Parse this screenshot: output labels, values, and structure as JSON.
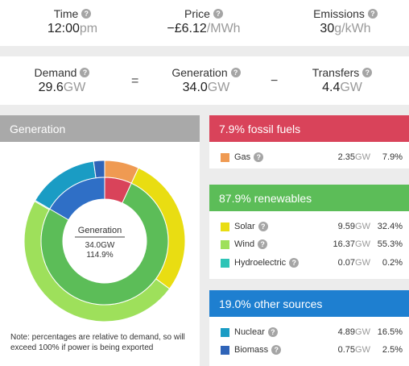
{
  "top": {
    "time": {
      "label": "Time",
      "value": "12:00",
      "unit": "pm"
    },
    "price": {
      "label": "Price",
      "value": "−£6.12",
      "unit": "/MWh"
    },
    "emissions": {
      "label": "Emissions",
      "value": "30",
      "unit": "g/kWh"
    }
  },
  "balance": {
    "demand": {
      "label": "Demand",
      "value": "29.6",
      "unit": "GW"
    },
    "equals": "=",
    "generation": {
      "label": "Generation",
      "value": "34.0",
      "unit": "GW"
    },
    "minus": "−",
    "transfers": {
      "label": "Transfers",
      "value": "4.4",
      "unit": "GW"
    }
  },
  "generation_panel": {
    "title": "Generation",
    "center_label": "Generation",
    "center_gw": "34.0GW",
    "center_pct": "114.9%",
    "note": "Note: percentages are relative to demand, so will exceed 100% if power is being exported"
  },
  "groups": [
    {
      "title": "7.9% fossil fuels",
      "color": "#d9435a",
      "rows": [
        {
          "name": "Gas",
          "color": "#ef9a52",
          "gw": "2.35",
          "unit": "GW",
          "pct": "7.9%"
        }
      ]
    },
    {
      "title": "87.9% renewables",
      "color": "#5cbd58",
      "rows": [
        {
          "name": "Solar",
          "color": "#e9dd12",
          "gw": "9.59",
          "unit": "GW",
          "pct": "32.4%"
        },
        {
          "name": "Wind",
          "color": "#9ee05b",
          "gw": "16.37",
          "unit": "GW",
          "pct": "55.3%"
        },
        {
          "name": "Hydroelectric",
          "color": "#2ec4b6",
          "gw": "0.07",
          "unit": "GW",
          "pct": "0.2%"
        }
      ]
    },
    {
      "title": "19.0% other sources",
      "color": "#1e7fd0",
      "rows": [
        {
          "name": "Nuclear",
          "color": "#1a9cc4",
          "gw": "4.89",
          "unit": "GW",
          "pct": "16.5%"
        },
        {
          "name": "Biomass",
          "color": "#2f64b8",
          "gw": "0.75",
          "unit": "GW",
          "pct": "2.5%"
        }
      ]
    }
  ],
  "chart_data": {
    "type": "pie",
    "title": "Generation",
    "outer_ring": [
      {
        "name": "Gas",
        "value": 2.35,
        "color": "#ef9a52"
      },
      {
        "name": "Solar",
        "value": 9.59,
        "color": "#e9dd12"
      },
      {
        "name": "Wind",
        "value": 16.37,
        "color": "#9ee05b"
      },
      {
        "name": "Hydroelectric",
        "value": 0.07,
        "color": "#2ec4b6"
      },
      {
        "name": "Nuclear",
        "value": 4.89,
        "color": "#1a9cc4"
      },
      {
        "name": "Biomass",
        "value": 0.75,
        "color": "#2f64b8"
      }
    ],
    "inner_ring": [
      {
        "name": "fossil fuels",
        "value": 2.35,
        "color": "#d9435a"
      },
      {
        "name": "renewables",
        "value": 26.03,
        "color": "#5cbd58"
      },
      {
        "name": "other sources",
        "value": 5.64,
        "color": "#2f6fc6"
      }
    ]
  }
}
